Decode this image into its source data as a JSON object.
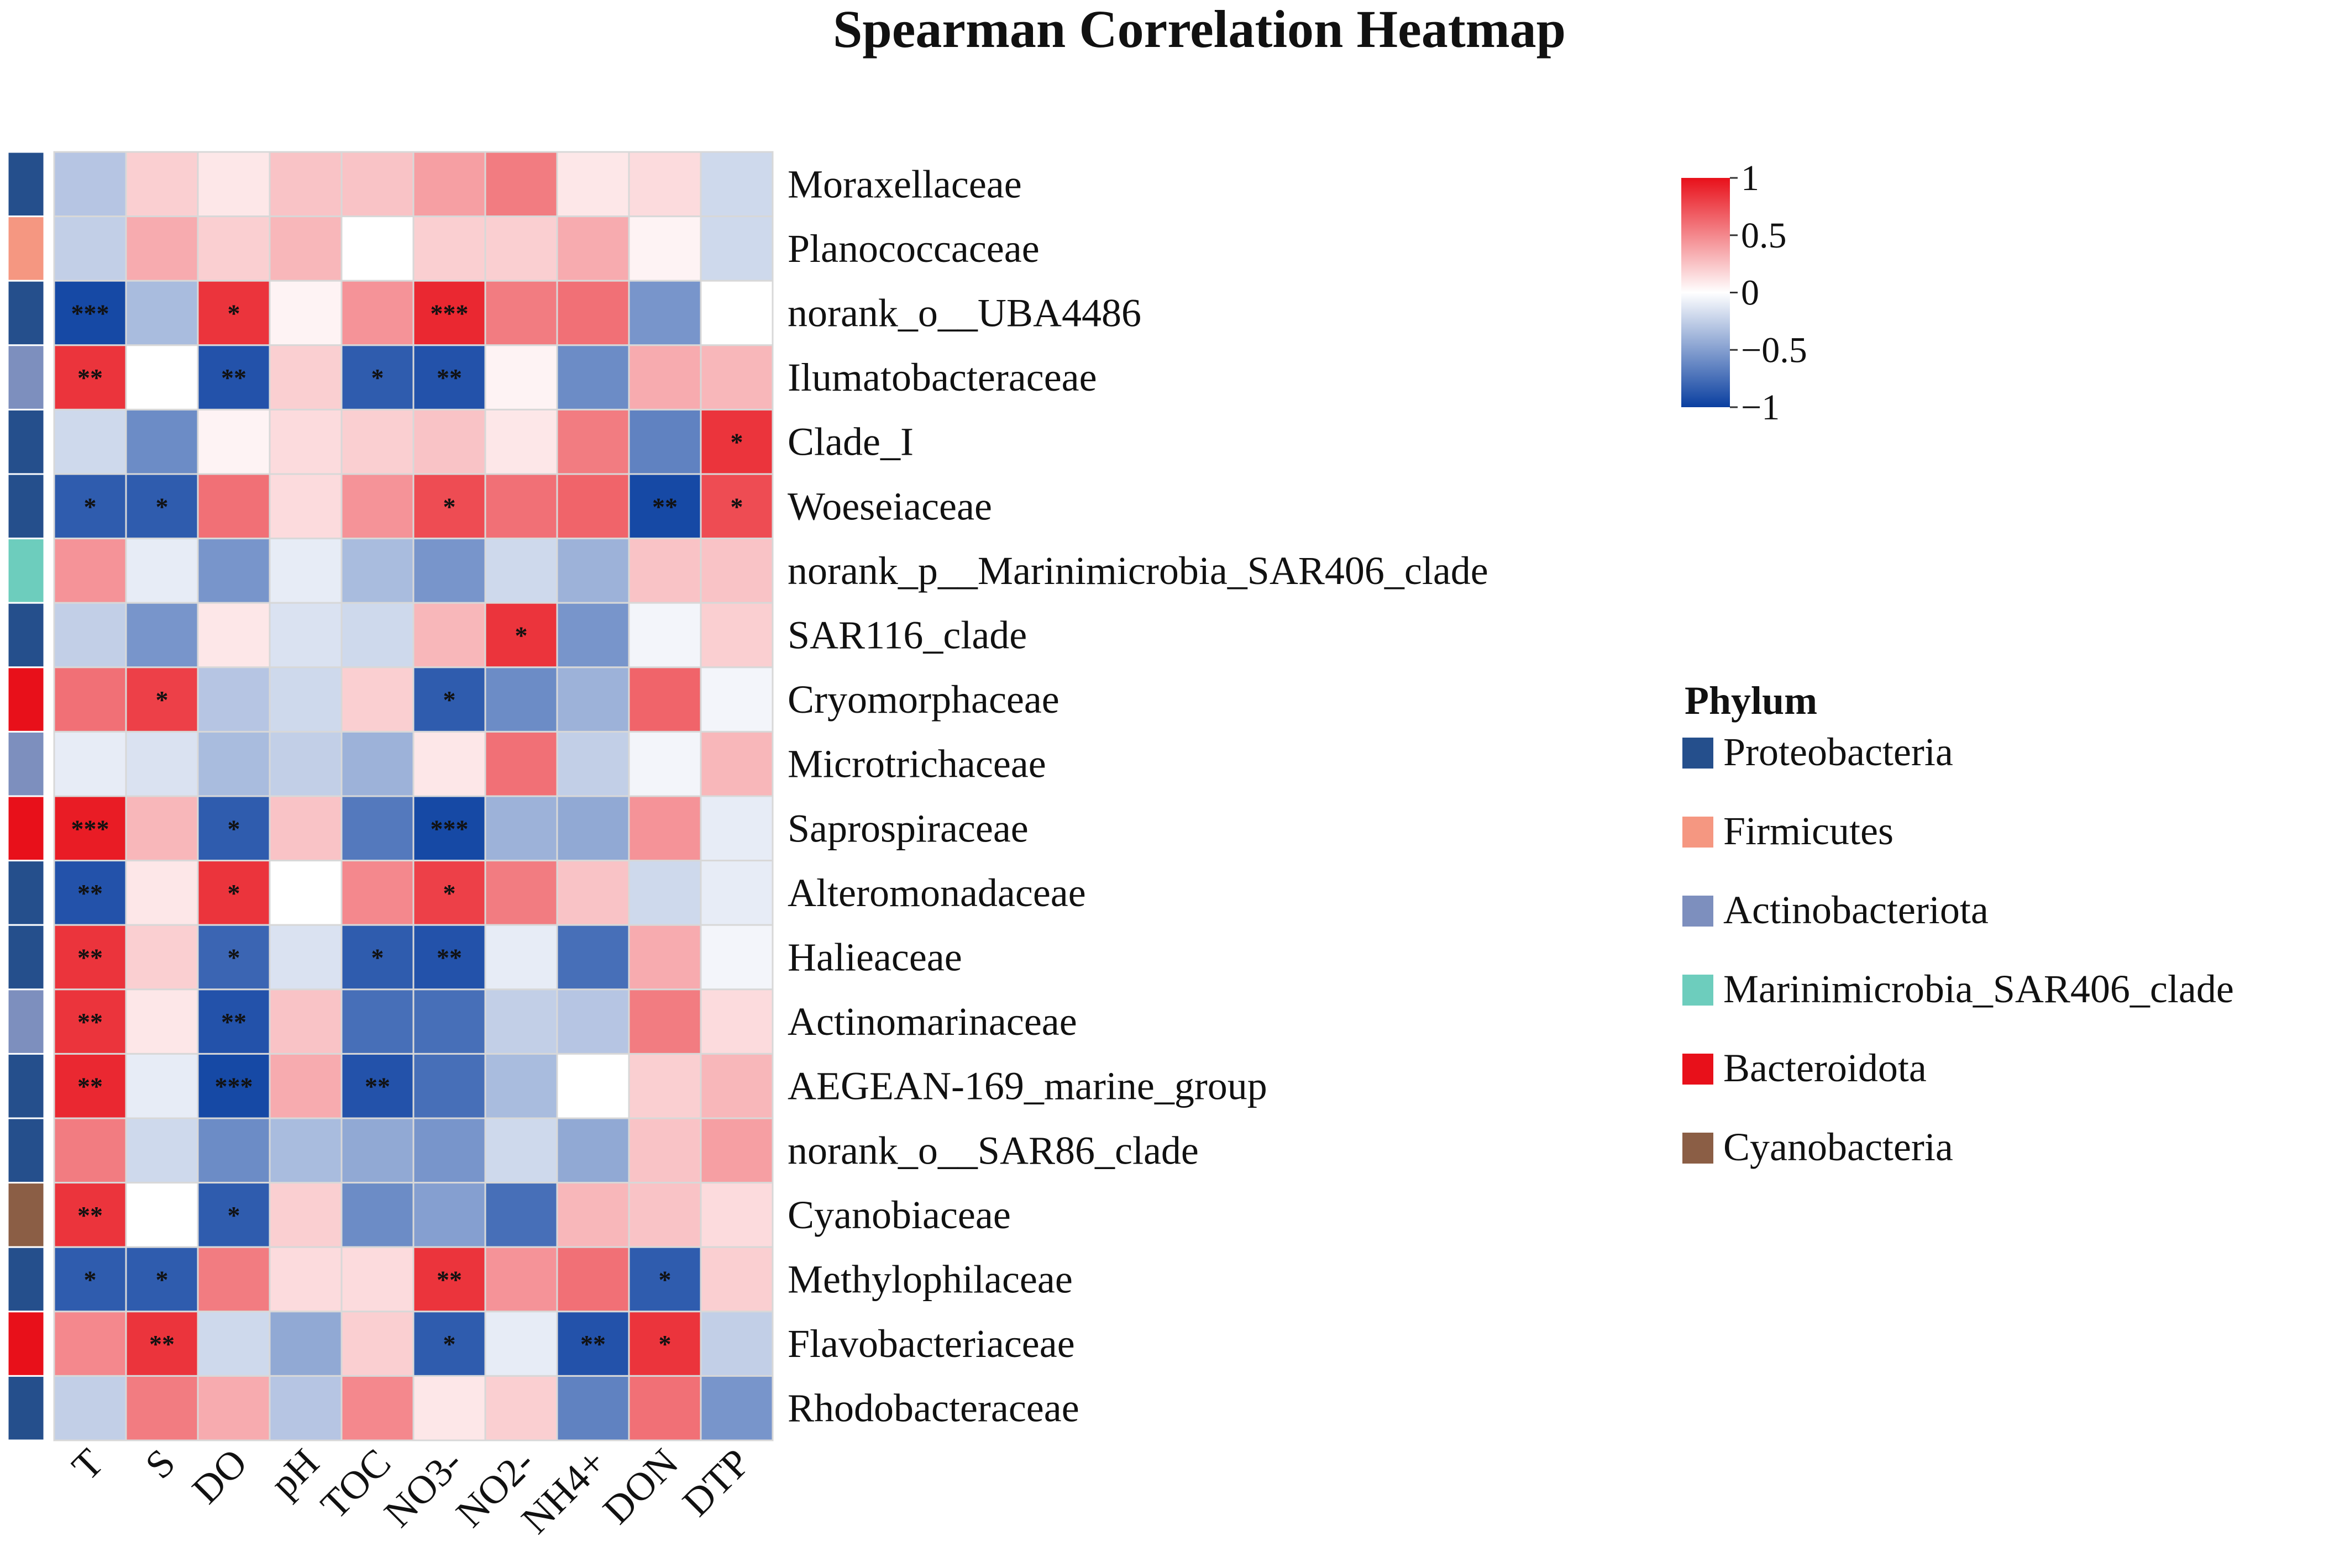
{
  "chart_data": {
    "type": "heatmap",
    "title": "Spearman Correlation Heatmap",
    "columns": [
      "T",
      "S",
      "DO",
      "pH",
      "TOC",
      "NO3-",
      "NO2-",
      "NH4+",
      "DON",
      "DTP"
    ],
    "rows": [
      {
        "name": "Moraxellaceae",
        "phylum": "Proteobacteria",
        "values": [
          -0.3,
          0.2,
          0.1,
          0.25,
          0.25,
          0.4,
          0.55,
          0.1,
          0.15,
          -0.2
        ],
        "sig": [
          "",
          "",
          "",
          "",
          "",
          "",
          "",
          "",
          "",
          ""
        ]
      },
      {
        "name": "Planococcaceae",
        "phylum": "Firmicutes",
        "values": [
          -0.25,
          0.35,
          0.2,
          0.3,
          0.0,
          0.2,
          0.2,
          0.35,
          0.05,
          -0.2
        ],
        "sig": [
          "",
          "",
          "",
          "",
          "",
          "",
          "",
          "",
          "",
          ""
        ]
      },
      {
        "name": "norank_o__UBA4486",
        "phylum": "Proteobacteria",
        "values": [
          -0.95,
          -0.35,
          0.85,
          0.05,
          0.45,
          0.9,
          0.55,
          0.6,
          -0.55,
          0.0
        ],
        "sig": [
          "***",
          "",
          "*",
          "",
          "",
          "***",
          "",
          "",
          "",
          ""
        ]
      },
      {
        "name": "Ilumatobacteraceae",
        "phylum": "Actinobacteriota",
        "values": [
          0.85,
          0.0,
          -0.9,
          0.2,
          -0.85,
          -0.9,
          0.05,
          -0.6,
          0.35,
          0.3
        ],
        "sig": [
          "**",
          "",
          "**",
          "",
          "*",
          "**",
          "",
          "",
          "",
          ""
        ]
      },
      {
        "name": "Clade_I",
        "phylum": "Proteobacteria",
        "values": [
          -0.2,
          -0.6,
          0.05,
          0.15,
          0.2,
          0.25,
          0.1,
          0.55,
          -0.65,
          0.85
        ],
        "sig": [
          "",
          "",
          "",
          "",
          "",
          "",
          "",
          "",
          "",
          "*"
        ]
      },
      {
        "name": "Woeseiaceae",
        "phylum": "Proteobacteria",
        "values": [
          -0.85,
          -0.85,
          0.6,
          0.15,
          0.45,
          0.75,
          0.6,
          0.65,
          -0.95,
          0.75
        ],
        "sig": [
          "*",
          "*",
          "",
          "",
          "",
          "*",
          "",
          "",
          "**",
          "*"
        ]
      },
      {
        "name": "norank_p__Marinimicrobia_SAR406_clade",
        "phylum": "Marinimicrobia_SAR406_clade",
        "values": [
          0.45,
          -0.1,
          -0.55,
          -0.1,
          -0.35,
          -0.55,
          -0.2,
          -0.4,
          0.25,
          0.25
        ],
        "sig": [
          "",
          "",
          "",
          "",
          "",
          "",
          "",
          "",
          "",
          ""
        ]
      },
      {
        "name": "SAR116_clade",
        "phylum": "Proteobacteria",
        "values": [
          -0.25,
          -0.55,
          0.1,
          -0.15,
          -0.2,
          0.3,
          0.85,
          -0.55,
          -0.05,
          0.2
        ],
        "sig": [
          "",
          "",
          "",
          "",
          "",
          "",
          "*",
          "",
          "",
          ""
        ]
      },
      {
        "name": "Cryomorphaceae",
        "phylum": "Bacteroidota",
        "values": [
          0.6,
          0.8,
          -0.3,
          -0.2,
          0.2,
          -0.85,
          -0.6,
          -0.4,
          0.65,
          -0.05
        ],
        "sig": [
          "",
          "*",
          "",
          "",
          "",
          "*",
          "",
          "",
          "",
          ""
        ]
      },
      {
        "name": "Microtrichaceae",
        "phylum": "Actinobacteriota",
        "values": [
          -0.1,
          -0.15,
          -0.35,
          -0.25,
          -0.4,
          0.1,
          0.6,
          -0.25,
          -0.05,
          0.3
        ],
        "sig": [
          "",
          "",
          "",
          "",
          "",
          "",
          "",
          "",
          "",
          ""
        ]
      },
      {
        "name": "Saprospiraceae",
        "phylum": "Bacteroidota",
        "values": [
          0.95,
          0.3,
          -0.85,
          0.25,
          -0.7,
          -0.95,
          -0.4,
          -0.45,
          0.45,
          -0.1
        ],
        "sig": [
          "***",
          "",
          "*",
          "",
          "",
          "***",
          "",
          "",
          "",
          ""
        ]
      },
      {
        "name": "Alteromonadaceae",
        "phylum": "Proteobacteria",
        "values": [
          -0.9,
          0.1,
          0.85,
          0.0,
          0.5,
          0.8,
          0.55,
          0.25,
          -0.2,
          -0.1
        ],
        "sig": [
          "**",
          "",
          "*",
          "",
          "",
          "*",
          "",
          "",
          "",
          ""
        ]
      },
      {
        "name": "Halieaceae",
        "phylum": "Proteobacteria",
        "values": [
          0.85,
          0.2,
          -0.8,
          -0.15,
          -0.85,
          -0.9,
          -0.1,
          -0.75,
          0.35,
          -0.05
        ],
        "sig": [
          "**",
          "",
          "*",
          "",
          "*",
          "**",
          "",
          "",
          "",
          ""
        ]
      },
      {
        "name": "Actinomarinaceae",
        "phylum": "Actinobacteriota",
        "values": [
          0.85,
          0.1,
          -0.9,
          0.25,
          -0.75,
          -0.75,
          -0.25,
          -0.3,
          0.55,
          0.15
        ],
        "sig": [
          "**",
          "",
          "**",
          "",
          "",
          "",
          "",
          "",
          "",
          ""
        ]
      },
      {
        "name": "AEGEAN-169_marine_group",
        "phylum": "Proteobacteria",
        "values": [
          0.9,
          -0.1,
          -0.95,
          0.35,
          -0.9,
          -0.75,
          -0.35,
          0.0,
          0.2,
          0.3
        ],
        "sig": [
          "**",
          "",
          "***",
          "",
          "**",
          "",
          "",
          "",
          "",
          ""
        ]
      },
      {
        "name": "norank_o__SAR86_clade",
        "phylum": "Proteobacteria",
        "values": [
          0.55,
          -0.2,
          -0.6,
          -0.35,
          -0.45,
          -0.55,
          -0.2,
          -0.45,
          0.25,
          0.4
        ],
        "sig": [
          "",
          "",
          "",
          "",
          "",
          "",
          "",
          "",
          "",
          ""
        ]
      },
      {
        "name": "Cyanobiaceae",
        "phylum": "Cyanobacteria",
        "values": [
          0.85,
          0.0,
          -0.85,
          0.2,
          -0.6,
          -0.5,
          -0.75,
          0.3,
          0.25,
          0.15
        ],
        "sig": [
          "**",
          "",
          "*",
          "",
          "",
          "",
          "",
          "",
          "",
          ""
        ]
      },
      {
        "name": "Methylophilaceae",
        "phylum": "Proteobacteria",
        "values": [
          -0.85,
          -0.85,
          0.55,
          0.15,
          0.15,
          0.85,
          0.45,
          0.6,
          -0.85,
          0.2
        ],
        "sig": [
          "*",
          "*",
          "",
          "",
          "",
          "**",
          "",
          "",
          "*",
          ""
        ]
      },
      {
        "name": "Flavobacteriaceae",
        "phylum": "Bacteroidota",
        "values": [
          0.5,
          0.85,
          -0.2,
          -0.45,
          0.2,
          -0.85,
          -0.1,
          -0.9,
          0.85,
          -0.25
        ],
        "sig": [
          "",
          "**",
          "",
          "",
          "",
          "*",
          "",
          "**",
          "*",
          ""
        ]
      },
      {
        "name": "Rhodobacteraceae",
        "phylum": "Proteobacteria",
        "values": [
          -0.25,
          0.55,
          0.35,
          -0.3,
          0.5,
          0.1,
          0.2,
          -0.65,
          0.6,
          -0.55
        ],
        "sig": [
          "",
          "",
          "",
          "",
          "",
          "",
          "",
          "",
          "",
          ""
        ]
      }
    ],
    "color_scale": {
      "min": -1,
      "max": 1,
      "ticks": [
        "1",
        "0.5",
        "0",
        "−0.5",
        "−1"
      ],
      "low_color": "#0a3fa0",
      "mid_color": "#ffffff",
      "high_color": "#e8101a"
    },
    "legend": {
      "title": "Phylum",
      "entries": [
        {
          "label": "Proteobacteria",
          "color": "#254f8c"
        },
        {
          "label": "Firmicutes",
          "color": "#f59781"
        },
        {
          "label": "Actinobacteriota",
          "color": "#7d8fbe"
        },
        {
          "label": "Marinimicrobia_SAR406_clade",
          "color": "#6dcdbd"
        },
        {
          "label": "Bacteroidota",
          "color": "#e8101a"
        },
        {
          "label": "Cyanobacteria",
          "color": "#8b5e45"
        }
      ]
    }
  }
}
